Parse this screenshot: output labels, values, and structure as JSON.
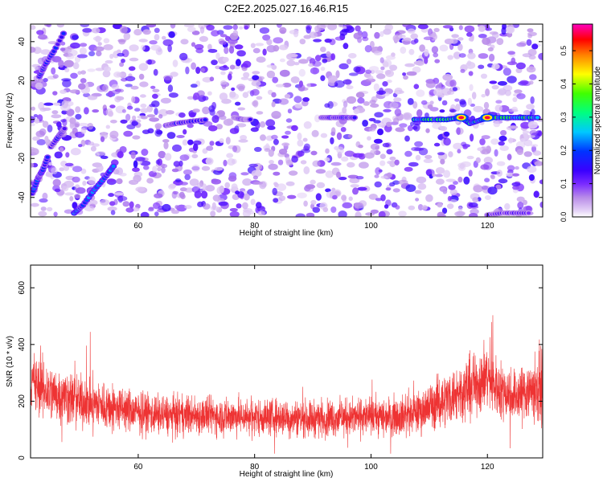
{
  "title": "C2E2.2025.027.16.46.R15",
  "colors": {
    "snr_line": "#ee3333",
    "axis": "#000000",
    "background": "#ffffff",
    "colorbar": [
      "#ffffff",
      "#e6d5f7",
      "#b98ce8",
      "#7b2cff",
      "#3a00ff",
      "#0033ff",
      "#00c8ff",
      "#00ff80",
      "#40ff00",
      "#ffff00",
      "#ff8000",
      "#ff0000",
      "#ff00c0"
    ]
  },
  "chart_data": [
    {
      "type": "heatmap",
      "xlabel": "Height of straight line (km)",
      "ylabel": "Frequency (Hz)",
      "xlim": [
        41.5,
        129.5
      ],
      "ylim": [
        -50,
        49
      ],
      "xticks": [
        60,
        80,
        100,
        120
      ],
      "yticks": [
        -40,
        -20,
        0,
        20,
        40
      ],
      "colorbar": {
        "label": "Normalized spectral amplitude",
        "range": [
          0,
          0.58
        ],
        "ticks": [
          0.0,
          0.1,
          0.2,
          0.3,
          0.4,
          0.5
        ]
      },
      "features": [
        {
          "name": "diagonal streak",
          "x": [
            41.8,
            42.8,
            43.6,
            44.6
          ],
          "y": [
            -38,
            -30,
            -26,
            -18
          ],
          "amplitude": 0.18
        },
        {
          "name": "diagonal streak",
          "x": [
            45.0,
            46.5,
            47.5
          ],
          "y": [
            -14,
            -8,
            -4
          ],
          "amplitude": 0.15
        },
        {
          "name": "diagonal streak",
          "x": [
            49.0,
            50.5,
            52.5,
            54.5,
            56.0
          ],
          "y": [
            -48,
            -44,
            -36,
            -29,
            -23
          ],
          "amplitude": 0.2
        },
        {
          "name": "diagonal streak",
          "x": [
            43.0,
            44.0,
            45.5,
            47.5
          ],
          "y": [
            22,
            28,
            35,
            46
          ],
          "amplitude": 0.16
        },
        {
          "name": "zero-frequency band",
          "x": [
            64.8,
            66.5,
            69.0,
            72.0
          ],
          "y": [
            -3,
            -2,
            -1,
            0
          ],
          "amplitude": 0.14
        },
        {
          "name": "zero-frequency band",
          "x": [
            76.5,
            78.0,
            79.5
          ],
          "y": [
            1,
            0,
            0
          ],
          "amplitude": 0.12
        },
        {
          "name": "zero-frequency band",
          "x": [
            91.5,
            93.5,
            95.5,
            97.5
          ],
          "y": [
            1,
            1,
            1,
            1
          ],
          "amplitude": 0.15
        },
        {
          "name": "zero-frequency band",
          "x": [
            107.5,
            110.0,
            113.0,
            115.5,
            117.0,
            119.0,
            121.0,
            124.0,
            126.5,
            129.0
          ],
          "y": [
            0,
            0,
            0,
            1,
            -2,
            0,
            1,
            1,
            1,
            1
          ],
          "amplitude": 0.3
        },
        {
          "name": "peak",
          "x": [
            115.5,
            120.0
          ],
          "y": [
            1,
            1
          ],
          "amplitude": 0.55
        },
        {
          "name": "edge band",
          "x": [
            120.0,
            122.5,
            125.0,
            127.5
          ],
          "y": [
            -49,
            -48,
            -48,
            -48
          ],
          "amplitude": 0.12
        }
      ]
    },
    {
      "type": "line",
      "xlabel": "Height of straight line (km)",
      "ylabel": "SNR (10 * v/v)",
      "xlim": [
        41.5,
        129.5
      ],
      "ylim": [
        0,
        680
      ],
      "xticks": [
        60,
        80,
        100,
        120
      ],
      "yticks": [
        0,
        200,
        400,
        600
      ],
      "envelope": {
        "x": [
          42,
          45,
          50,
          55,
          60,
          65,
          70,
          80,
          90,
          100,
          105,
          108,
          112,
          115,
          118,
          120,
          122,
          125,
          127,
          129
        ],
        "mean": [
          260,
          230,
          200,
          180,
          160,
          150,
          150,
          145,
          140,
          145,
          150,
          160,
          200,
          230,
          260,
          290,
          240,
          220,
          240,
          250
        ],
        "spread": [
          120,
          110,
          100,
          90,
          80,
          75,
          75,
          70,
          70,
          70,
          75,
          80,
          100,
          110,
          120,
          130,
          110,
          100,
          120,
          140
        ]
      }
    }
  ]
}
